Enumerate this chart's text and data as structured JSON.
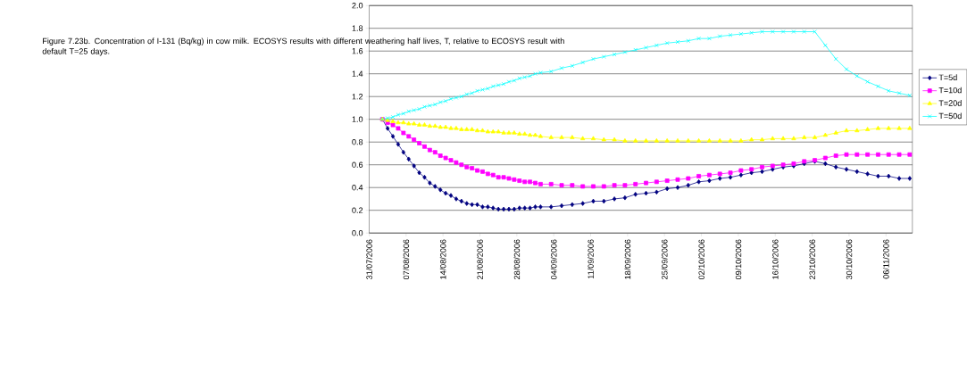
{
  "chart_data": {
    "type": "line",
    "title": "Figure 7.23b. Concentration of I-131 (Bq/kg) in cow milk. ECOSYS results with different weathering half lives, T, relative to ECOSYS result with default T=25 days.",
    "x": [
      "2006-08-02T12:00",
      "2006-08-03T12:00",
      "2006-08-04T12:00",
      "2006-08-05T12:00",
      "2006-08-06T12:00",
      "2006-08-07T12:00",
      "2006-08-08T12:00",
      "2006-08-09T12:00",
      "2006-08-10T12:00",
      "2006-08-11T12:00",
      "2006-08-12T12:00",
      "2006-08-13T12:00",
      "2006-08-14T12:00",
      "2006-08-15T12:00",
      "2006-08-16T12:00",
      "2006-08-17T12:00",
      "2006-08-18T12:00",
      "2006-08-19T12:00",
      "2006-08-20T12:00",
      "2006-08-21T12:00",
      "2006-08-22T12:00",
      "2006-08-23T12:00",
      "2006-08-24T12:00",
      "2006-08-25T12:00",
      "2006-08-26T12:00",
      "2006-08-27T12:00",
      "2006-08-28T12:00",
      "2006-08-29T12:00",
      "2006-08-30T12:00",
      "2006-08-31T12:00",
      "2006-09-01T12:00",
      "2006-09-03T12:00",
      "2006-09-05T12:00",
      "2006-09-07T12:00",
      "2006-09-09T12:00",
      "2006-09-11T12:00",
      "2006-09-13T12:00",
      "2006-09-15T12:00",
      "2006-09-17T12:00",
      "2006-09-19T12:00",
      "2006-09-21T12:00",
      "2006-09-23T12:00",
      "2006-09-25T12:00",
      "2006-09-27T12:00",
      "2006-09-29T12:00",
      "2006-10-01T12:00",
      "2006-10-03T12:00",
      "2006-10-05T12:00",
      "2006-10-07T12:00",
      "2006-10-09T12:00",
      "2006-10-11T12:00",
      "2006-10-13T12:00",
      "2006-10-15T12:00",
      "2006-10-17T12:00",
      "2006-10-19T12:00",
      "2006-10-21T12:00",
      "2006-10-23T12:00",
      "2006-10-25T12:00",
      "2006-10-27T12:00",
      "2006-10-29T12:00",
      "2006-10-31T12:00",
      "2006-11-02T12:00",
      "2006-11-04T12:00",
      "2006-11-06T12:00",
      "2006-11-08T12:00",
      "2006-11-10T12:00"
    ],
    "series": [
      {
        "name": "T=5d",
        "color": "#000080",
        "marker": "diamond",
        "values": [
          1.0,
          0.92,
          0.85,
          0.78,
          0.71,
          0.65,
          0.59,
          0.53,
          0.49,
          0.44,
          0.41,
          0.38,
          0.35,
          0.33,
          0.3,
          0.28,
          0.26,
          0.25,
          0.25,
          0.23,
          0.23,
          0.22,
          0.21,
          0.21,
          0.21,
          0.21,
          0.22,
          0.22,
          0.22,
          0.23,
          0.23,
          0.23,
          0.24,
          0.25,
          0.26,
          0.28,
          0.28,
          0.3,
          0.31,
          0.34,
          0.35,
          0.36,
          0.39,
          0.4,
          0.42,
          0.45,
          0.46,
          0.48,
          0.49,
          0.51,
          0.53,
          0.54,
          0.56,
          0.58,
          0.59,
          0.61,
          0.63,
          0.61,
          0.58,
          0.56,
          0.54,
          0.52,
          0.5,
          0.5,
          0.48,
          0.48
        ]
      },
      {
        "name": "T=10d",
        "color": "#ff00ff",
        "marker": "square",
        "values": [
          1.0,
          0.97,
          0.95,
          0.92,
          0.88,
          0.85,
          0.82,
          0.79,
          0.76,
          0.73,
          0.71,
          0.68,
          0.66,
          0.64,
          0.62,
          0.6,
          0.58,
          0.57,
          0.55,
          0.54,
          0.52,
          0.51,
          0.49,
          0.49,
          0.48,
          0.47,
          0.46,
          0.45,
          0.45,
          0.44,
          0.43,
          0.43,
          0.42,
          0.42,
          0.41,
          0.41,
          0.41,
          0.42,
          0.42,
          0.43,
          0.44,
          0.45,
          0.46,
          0.47,
          0.48,
          0.5,
          0.51,
          0.52,
          0.53,
          0.55,
          0.56,
          0.58,
          0.59,
          0.6,
          0.61,
          0.63,
          0.64,
          0.66,
          0.68,
          0.69,
          0.69,
          0.69,
          0.69,
          0.69,
          0.69,
          0.69
        ]
      },
      {
        "name": "T=20d",
        "color": "#ffff00",
        "marker": "triangle",
        "values": [
          1.0,
          0.99,
          0.98,
          0.97,
          0.97,
          0.96,
          0.96,
          0.95,
          0.95,
          0.94,
          0.94,
          0.93,
          0.93,
          0.92,
          0.92,
          0.91,
          0.91,
          0.91,
          0.9,
          0.9,
          0.89,
          0.89,
          0.89,
          0.88,
          0.88,
          0.88,
          0.87,
          0.87,
          0.86,
          0.86,
          0.85,
          0.84,
          0.84,
          0.84,
          0.83,
          0.83,
          0.82,
          0.82,
          0.81,
          0.81,
          0.81,
          0.81,
          0.81,
          0.81,
          0.81,
          0.81,
          0.81,
          0.81,
          0.81,
          0.81,
          0.82,
          0.82,
          0.83,
          0.83,
          0.83,
          0.84,
          0.84,
          0.86,
          0.88,
          0.9,
          0.9,
          0.91,
          0.92,
          0.92,
          0.92,
          0.92
        ]
      },
      {
        "name": "T=50d",
        "color": "#00ffff",
        "marker": "cross",
        "values": [
          1.0,
          1.01,
          1.02,
          1.04,
          1.05,
          1.07,
          1.08,
          1.09,
          1.11,
          1.12,
          1.13,
          1.15,
          1.16,
          1.18,
          1.19,
          1.2,
          1.22,
          1.23,
          1.25,
          1.26,
          1.27,
          1.29,
          1.3,
          1.31,
          1.33,
          1.34,
          1.36,
          1.37,
          1.38,
          1.4,
          1.41,
          1.42,
          1.45,
          1.47,
          1.5,
          1.53,
          1.55,
          1.57,
          1.59,
          1.61,
          1.63,
          1.65,
          1.67,
          1.68,
          1.69,
          1.71,
          1.71,
          1.73,
          1.74,
          1.75,
          1.76,
          1.77,
          1.77,
          1.77,
          1.77,
          1.77,
          1.77,
          1.65,
          1.53,
          1.44,
          1.38,
          1.33,
          1.29,
          1.25,
          1.23,
          1.21
        ]
      }
    ],
    "xlim": [
      "2006-07-31",
      "2006-11-11"
    ],
    "xticks": [
      {
        "value": "2006-07-31",
        "label": "31/07/2006"
      },
      {
        "value": "2006-08-07",
        "label": "07/08/2006"
      },
      {
        "value": "2006-08-14",
        "label": "14/08/2006"
      },
      {
        "value": "2006-08-21",
        "label": "21/08/2006"
      },
      {
        "value": "2006-08-28",
        "label": "28/08/2006"
      },
      {
        "value": "2006-09-04",
        "label": "04/09/2006"
      },
      {
        "value": "2006-09-11",
        "label": "11/09/2006"
      },
      {
        "value": "2006-09-18",
        "label": "18/09/2006"
      },
      {
        "value": "2006-09-25",
        "label": "25/09/2006"
      },
      {
        "value": "2006-10-02",
        "label": "02/10/2006"
      },
      {
        "value": "2006-10-09",
        "label": "09/10/2006"
      },
      {
        "value": "2006-10-16",
        "label": "16/10/2006"
      },
      {
        "value": "2006-10-23",
        "label": "23/10/2006"
      },
      {
        "value": "2006-10-30",
        "label": "30/10/2006"
      },
      {
        "value": "2006-11-06",
        "label": "06/11/2006"
      }
    ],
    "ylim": [
      0,
      2
    ],
    "yticks": [
      {
        "value": 0,
        "label": "0.0"
      },
      {
        "value": 0.2,
        "label": "0.2"
      },
      {
        "value": 0.4,
        "label": "0.4"
      },
      {
        "value": 0.6,
        "label": "0.6"
      },
      {
        "value": 0.8,
        "label": "0.8"
      },
      {
        "value": 1.0,
        "label": "1.0"
      },
      {
        "value": 1.2,
        "label": "1.2"
      },
      {
        "value": 1.4,
        "label": "1.4"
      },
      {
        "value": 1.6,
        "label": "1.6"
      },
      {
        "value": 1.8,
        "label": "1.8"
      },
      {
        "value": 2.0,
        "label": "2.0"
      }
    ],
    "grid": "y",
    "legend": "right"
  }
}
